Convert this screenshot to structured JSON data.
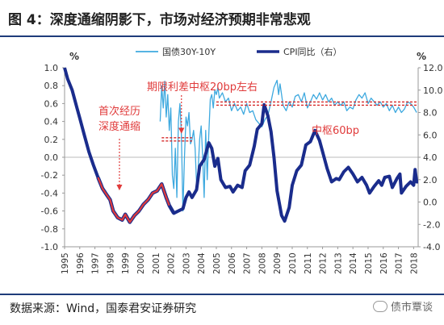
{
  "header": {
    "title": "图 4：深度通缩阴影下，市场对经济预期非常悲观"
  },
  "footer": {
    "source": "数据来源：Wind，国泰君安证券研究",
    "watermark": "债市覃谈"
  },
  "chart_data": {
    "type": "line",
    "title": "",
    "legend": [
      {
        "name": "国债30Y-10Y",
        "color": "#3ea9df",
        "axis": "left"
      },
      {
        "name": "CPI同比（右）",
        "color": "#1a2c8c",
        "axis": "right"
      }
    ],
    "legend_position": "top",
    "y_left": {
      "label": "%",
      "ylim": [
        -1.0,
        1.0
      ],
      "ticks": [
        "1.0",
        "0.8",
        "0.6",
        "0.4",
        "0.2",
        "0.0",
        "-0.2",
        "-0.4",
        "-0.6",
        "-0.8",
        "-1.0"
      ]
    },
    "y_right": {
      "label": "%",
      "ylim": [
        -4.0,
        12.0
      ],
      "ticks": [
        "12.0",
        "10.0",
        "8.0",
        "6.0",
        "4.0",
        "2.0",
        "0.0",
        "-2.0",
        "-4.0"
      ]
    },
    "x": {
      "ticks": [
        "1995",
        "1996",
        "1997",
        "1998",
        "1999",
        "2000",
        "2001",
        "2002",
        "2003",
        "2004",
        "2005",
        "2006",
        "2007",
        "2008",
        "2009",
        "2010",
        "2011",
        "2012",
        "2013",
        "2014",
        "2015",
        "2016",
        "2017",
        "2018"
      ],
      "range": [
        1995,
        2018.3
      ]
    },
    "grid": false,
    "series": [
      {
        "name": "国债30Y-10Y",
        "axis": "left",
        "color": "#3ea9df",
        "points": [
          [
            2001.3,
            0.4
          ],
          [
            2001.4,
            0.8
          ],
          [
            2001.5,
            0.55
          ],
          [
            2001.6,
            0.85
          ],
          [
            2001.7,
            0.45
          ],
          [
            2001.8,
            0.7
          ],
          [
            2001.9,
            0.3
          ],
          [
            2002.0,
            0.55
          ],
          [
            2002.1,
            -0.2
          ],
          [
            2002.2,
            -0.35
          ],
          [
            2002.3,
            0.1
          ],
          [
            2002.4,
            -0.45
          ],
          [
            2002.5,
            0.4
          ],
          [
            2002.6,
            0.6
          ],
          [
            2002.7,
            0.25
          ],
          [
            2002.8,
            -0.6
          ],
          [
            2002.9,
            0.0
          ],
          [
            2003.0,
            0.45
          ],
          [
            2003.1,
            0.35
          ],
          [
            2003.2,
            0.5
          ],
          [
            2003.3,
            0.15
          ],
          [
            2003.4,
            0.2
          ],
          [
            2003.5,
            0.3
          ],
          [
            2003.6,
            0.1
          ],
          [
            2003.7,
            -0.3
          ],
          [
            2003.8,
            -0.15
          ],
          [
            2003.9,
            0.2
          ],
          [
            2004.0,
            0.35
          ],
          [
            2004.1,
            0.0
          ],
          [
            2004.2,
            -0.45
          ],
          [
            2004.3,
            0.3
          ],
          [
            2004.4,
            -0.25
          ],
          [
            2004.5,
            0.25
          ],
          [
            2004.6,
            0.65
          ],
          [
            2004.7,
            0.7
          ],
          [
            2004.8,
            0.55
          ],
          [
            2004.9,
            0.75
          ],
          [
            2005.0,
            0.7
          ],
          [
            2005.1,
            0.78
          ],
          [
            2005.2,
            0.66
          ],
          [
            2005.4,
            0.72
          ],
          [
            2005.6,
            0.62
          ],
          [
            2005.8,
            0.66
          ],
          [
            2006.0,
            0.52
          ],
          [
            2006.2,
            0.6
          ],
          [
            2006.4,
            0.52
          ],
          [
            2006.6,
            0.56
          ],
          [
            2006.8,
            0.48
          ],
          [
            2007.0,
            0.6
          ],
          [
            2007.2,
            0.5
          ],
          [
            2007.4,
            0.52
          ],
          [
            2007.6,
            0.42
          ],
          [
            2007.8,
            0.38
          ],
          [
            2008.0,
            0.34
          ],
          [
            2008.2,
            0.42
          ],
          [
            2008.4,
            0.47
          ],
          [
            2008.6,
            0.62
          ],
          [
            2008.8,
            0.78
          ],
          [
            2009.0,
            0.86
          ],
          [
            2009.1,
            0.7
          ],
          [
            2009.2,
            0.82
          ],
          [
            2009.4,
            0.58
          ],
          [
            2009.6,
            0.52
          ],
          [
            2009.8,
            0.62
          ],
          [
            2010.0,
            0.56
          ],
          [
            2010.2,
            0.68
          ],
          [
            2010.4,
            0.7
          ],
          [
            2010.6,
            0.62
          ],
          [
            2010.8,
            0.72
          ],
          [
            2011.0,
            0.55
          ],
          [
            2011.2,
            0.62
          ],
          [
            2011.4,
            0.7
          ],
          [
            2011.6,
            0.65
          ],
          [
            2011.8,
            0.72
          ],
          [
            2012.0,
            0.64
          ],
          [
            2012.2,
            0.7
          ],
          [
            2012.4,
            0.62
          ],
          [
            2012.6,
            0.66
          ],
          [
            2012.8,
            0.58
          ],
          [
            2013.0,
            0.62
          ],
          [
            2013.2,
            0.58
          ],
          [
            2013.4,
            0.62
          ],
          [
            2013.6,
            0.52
          ],
          [
            2013.8,
            0.56
          ],
          [
            2014.0,
            0.54
          ],
          [
            2014.2,
            0.64
          ],
          [
            2014.4,
            0.7
          ],
          [
            2014.6,
            0.66
          ],
          [
            2014.8,
            0.72
          ],
          [
            2015.0,
            0.6
          ],
          [
            2015.2,
            0.66
          ],
          [
            2015.4,
            0.62
          ],
          [
            2015.6,
            0.58
          ],
          [
            2015.8,
            0.62
          ],
          [
            2016.0,
            0.56
          ],
          [
            2016.2,
            0.6
          ],
          [
            2016.4,
            0.52
          ],
          [
            2016.6,
            0.58
          ],
          [
            2016.8,
            0.5
          ],
          [
            2017.0,
            0.56
          ],
          [
            2017.2,
            0.5
          ],
          [
            2017.4,
            0.54
          ],
          [
            2017.6,
            0.62
          ],
          [
            2017.8,
            0.6
          ],
          [
            2018.0,
            0.56
          ],
          [
            2018.2,
            0.5
          ]
        ]
      },
      {
        "name": "CPI同比（右）",
        "axis": "right",
        "color": "#1a2c8c",
        "points": [
          [
            1995.0,
            12.0
          ],
          [
            1995.2,
            11.0
          ],
          [
            1995.5,
            10.0
          ],
          [
            1995.8,
            8.5
          ],
          [
            1996.0,
            7.5
          ],
          [
            1996.3,
            6.0
          ],
          [
            1996.6,
            4.5
          ],
          [
            1996.9,
            3.3
          ],
          [
            1997.2,
            2.2
          ],
          [
            1997.5,
            1.2
          ],
          [
            1997.8,
            0.6
          ],
          [
            1998.0,
            0.2
          ],
          [
            1998.2,
            -0.8
          ],
          [
            1998.5,
            -1.4
          ],
          [
            1998.8,
            -1.6
          ],
          [
            1999.0,
            -1.1
          ],
          [
            1999.3,
            -1.8
          ],
          [
            1999.6,
            -1.2
          ],
          [
            1999.9,
            -0.8
          ],
          [
            2000.2,
            -0.2
          ],
          [
            2000.5,
            0.2
          ],
          [
            2000.8,
            0.8
          ],
          [
            2001.1,
            1.0
          ],
          [
            2001.4,
            1.6
          ],
          [
            2001.7,
            0.4
          ],
          [
            2001.9,
            -0.3
          ],
          [
            2002.2,
            -1.0
          ],
          [
            2002.5,
            -0.8
          ],
          [
            2002.8,
            -0.6
          ],
          [
            2003.0,
            0.4
          ],
          [
            2003.2,
            0.9
          ],
          [
            2003.4,
            0.4
          ],
          [
            2003.7,
            1.1
          ],
          [
            2003.9,
            3.2
          ],
          [
            2004.2,
            3.8
          ],
          [
            2004.5,
            5.3
          ],
          [
            2004.7,
            4.8
          ],
          [
            2004.9,
            3.2
          ],
          [
            2005.1,
            3.9
          ],
          [
            2005.3,
            2.0
          ],
          [
            2005.6,
            1.3
          ],
          [
            2005.9,
            1.4
          ],
          [
            2006.1,
            0.9
          ],
          [
            2006.4,
            1.5
          ],
          [
            2006.7,
            1.3
          ],
          [
            2006.9,
            2.8
          ],
          [
            2007.2,
            3.3
          ],
          [
            2007.5,
            5.0
          ],
          [
            2007.7,
            6.5
          ],
          [
            2008.0,
            7.0
          ],
          [
            2008.15,
            8.7
          ],
          [
            2008.4,
            7.7
          ],
          [
            2008.6,
            6.3
          ],
          [
            2008.8,
            4.0
          ],
          [
            2009.0,
            1.0
          ],
          [
            2009.3,
            -1.2
          ],
          [
            2009.5,
            -1.7
          ],
          [
            2009.8,
            -0.5
          ],
          [
            2010.0,
            1.5
          ],
          [
            2010.3,
            2.8
          ],
          [
            2010.6,
            3.3
          ],
          [
            2010.9,
            5.1
          ],
          [
            2011.2,
            5.4
          ],
          [
            2011.5,
            6.4
          ],
          [
            2011.8,
            5.5
          ],
          [
            2012.0,
            4.5
          ],
          [
            2012.3,
            3.0
          ],
          [
            2012.6,
            1.8
          ],
          [
            2012.9,
            2.1
          ],
          [
            2013.1,
            2.0
          ],
          [
            2013.4,
            2.7
          ],
          [
            2013.7,
            3.1
          ],
          [
            2014.0,
            2.5
          ],
          [
            2014.3,
            1.8
          ],
          [
            2014.6,
            2.2
          ],
          [
            2014.9,
            1.5
          ],
          [
            2015.1,
            0.8
          ],
          [
            2015.4,
            1.4
          ],
          [
            2015.7,
            1.9
          ],
          [
            2015.9,
            1.5
          ],
          [
            2016.1,
            2.2
          ],
          [
            2016.4,
            2.3
          ],
          [
            2016.6,
            1.3
          ],
          [
            2016.9,
            2.1
          ],
          [
            2017.1,
            2.5
          ],
          [
            2017.2,
            0.8
          ],
          [
            2017.5,
            1.4
          ],
          [
            2017.8,
            1.8
          ],
          [
            2018.0,
            1.5
          ],
          [
            2018.1,
            2.9
          ],
          [
            2018.2,
            1.8
          ],
          [
            2018.3,
            1.8
          ]
        ]
      }
    ],
    "deflation_highlight": {
      "color": "#e03a3a",
      "x_range": [
        1997.5,
        2002.2
      ]
    },
    "reference_lines": [
      {
        "label": "期限利差中枢20bp左右",
        "y": 0.2,
        "x_range": [
          2001.4,
          2003.4
        ],
        "color": "#d62828"
      },
      {
        "label": "中枢60bp",
        "y": 0.6,
        "x_range": [
          2005.0,
          2018.3
        ],
        "color": "#d62828"
      }
    ],
    "annotations": [
      {
        "text": "首次经历\n深度通缩",
        "arrow_to": [
          1998.4,
          -0.4
        ],
        "color": "#e03a3a"
      },
      {
        "text": "期限利差中枢20bp左右",
        "arrow_to": [
          2002.7,
          0.27
        ],
        "color": "#e03a3a"
      },
      {
        "text": "中枢60bp",
        "color": "#e03a3a"
      }
    ]
  }
}
